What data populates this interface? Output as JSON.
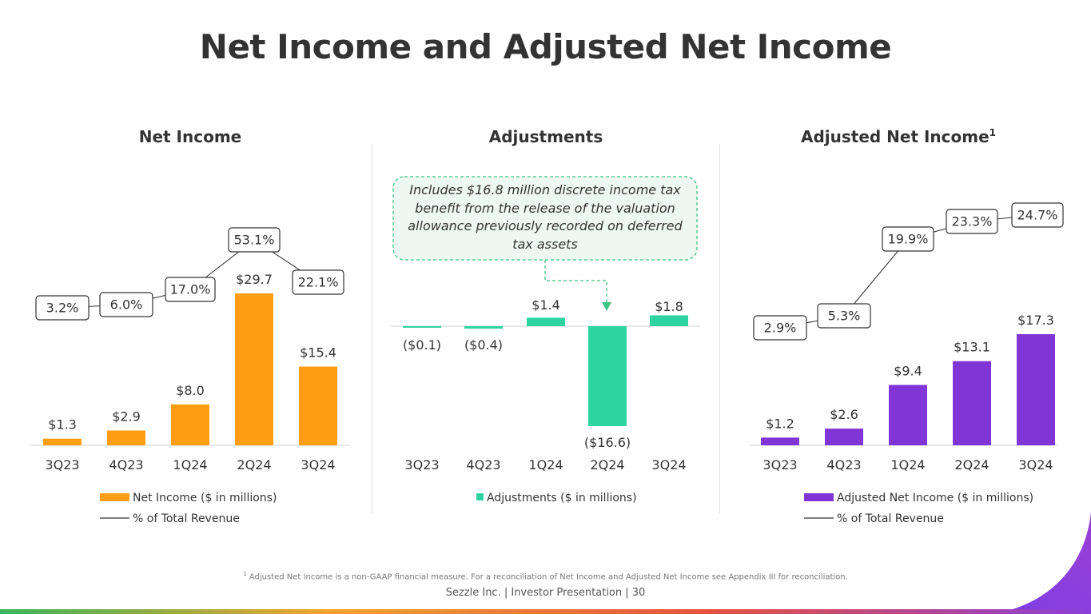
{
  "page": {
    "title": "Net Income and Adjusted Net Income",
    "footnote_marker": "1",
    "footnote": "Adjusted Net Income is a non-GAAP financial measure. For a reconciliation of Net Income and Adjusted Net Income see Appendix III for reconciliation.",
    "footer": "Sezzle Inc. | Investor Presentation | 30",
    "colors": {
      "orange": "#FF9E12",
      "green": "#2DD4A0",
      "purple": "#8135D6",
      "text": "#333333",
      "callout_border": "#3CC486",
      "callout_fill": "#EEF8F2"
    }
  },
  "chart_data": [
    {
      "type": "bar",
      "title": "Net Income",
      "categories": [
        "3Q23",
        "4Q23",
        "1Q24",
        "2Q24",
        "3Q24"
      ],
      "values": [
        1.3,
        2.9,
        8.0,
        29.7,
        15.4
      ],
      "value_labels": [
        "$1.3",
        "$2.9",
        "$8.0",
        "$29.7",
        "$15.4"
      ],
      "color": "#FF9E12",
      "line_series": {
        "name": "% of Total Revenue",
        "values": [
          3.2,
          6.0,
          17.0,
          53.1,
          22.1
        ],
        "labels": [
          "3.2%",
          "6.0%",
          "17.0%",
          "53.1%",
          "22.1%"
        ]
      },
      "legend": {
        "bar": "Net Income ($ in millions)",
        "line": "% of Total Revenue"
      }
    },
    {
      "type": "bar",
      "title": "Adjustments",
      "categories": [
        "3Q23",
        "4Q23",
        "1Q24",
        "2Q24",
        "3Q24"
      ],
      "values": [
        -0.1,
        -0.4,
        1.4,
        -16.6,
        1.8
      ],
      "value_labels": [
        "($0.1)",
        "($0.4)",
        "$1.4",
        "($16.6)",
        "$1.8"
      ],
      "color": "#2DD4A0",
      "annotation": "Includes $16.8 million discrete income tax benefit from the release of the valuation allowance previously recorded on deferred tax assets",
      "annotation_target": "2Q24",
      "legend": {
        "bar": "Adjustments ($ in millions)"
      }
    },
    {
      "type": "bar",
      "title": "Adjusted Net Income",
      "title_superscript": "1",
      "categories": [
        "3Q23",
        "4Q23",
        "1Q24",
        "2Q24",
        "3Q24"
      ],
      "values": [
        1.2,
        2.6,
        9.4,
        13.1,
        17.3
      ],
      "value_labels": [
        "$1.2",
        "$2.6",
        "$9.4",
        "$13.1",
        "$17.3"
      ],
      "color": "#8135D6",
      "line_series": {
        "name": "% of Total Revenue",
        "values": [
          2.9,
          5.3,
          19.9,
          23.3,
          24.7
        ],
        "labels": [
          "2.9%",
          "5.3%",
          "19.9%",
          "23.3%",
          "24.7%"
        ]
      },
      "legend": {
        "bar": "Adjusted Net Income ($ in millions)",
        "line": "% of Total Revenue"
      }
    }
  ]
}
